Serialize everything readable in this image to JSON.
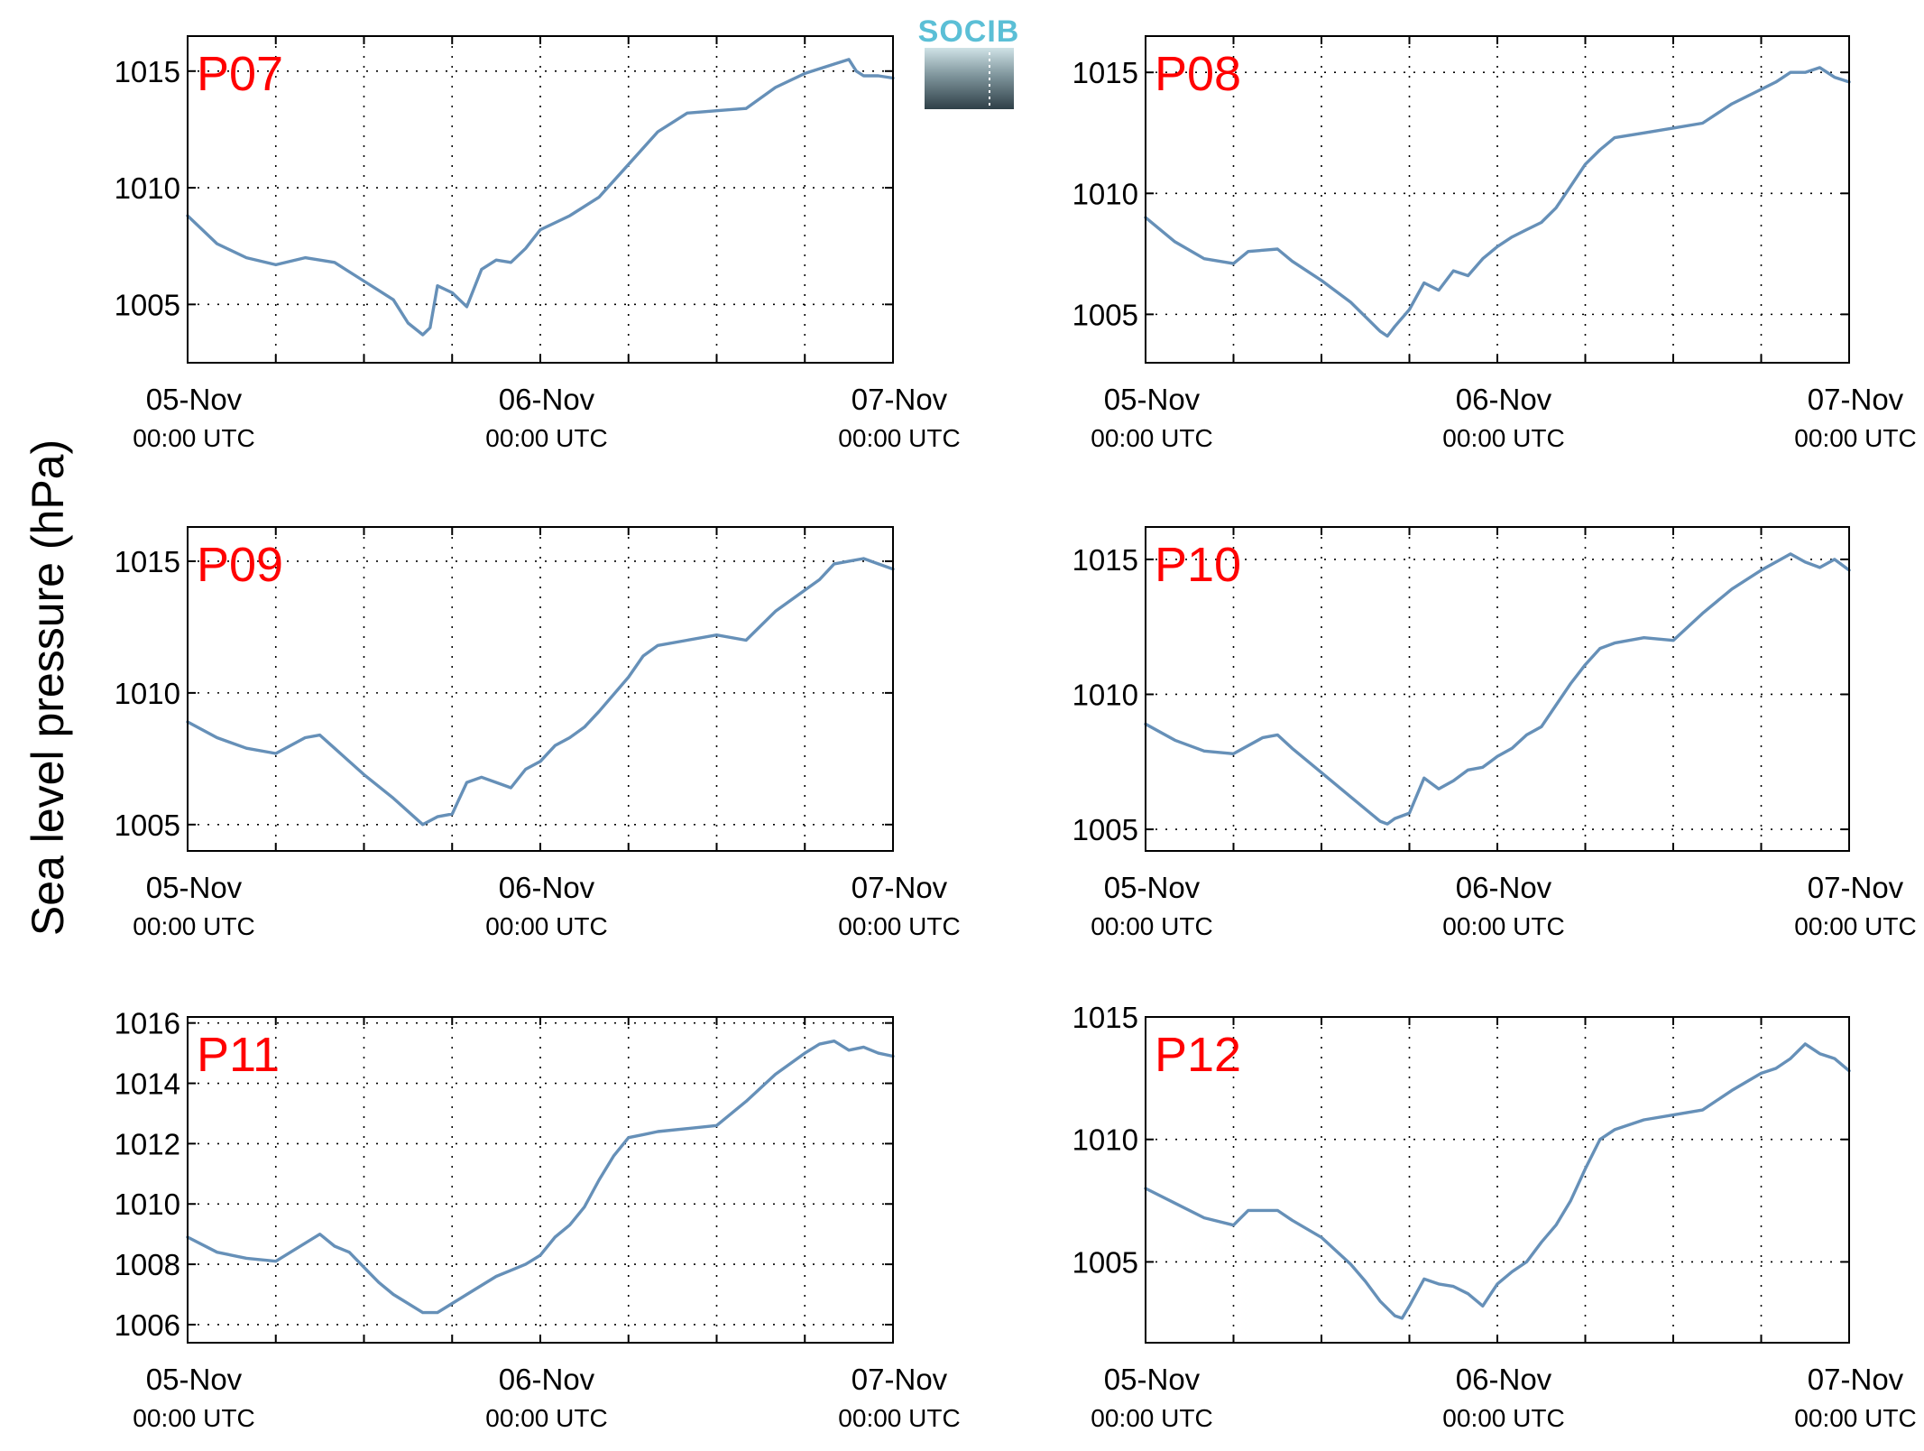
{
  "figure": {
    "ylabel": "Sea level pressure (hPa)",
    "logo_text": "SOCIB",
    "line_color": "#6690b8",
    "label_color": "#ff0000"
  },
  "chart_data": [
    {
      "type": "line",
      "title": "P07",
      "xlabels": [
        {
          "date": "05-Nov",
          "time": "00:00 UTC"
        },
        {
          "date": "06-Nov",
          "time": "00:00 UTC"
        },
        {
          "date": "07-Nov",
          "time": "00:00 UTC"
        }
      ],
      "xlim": [
        0,
        48
      ],
      "ylim": [
        1002.5,
        1016.5
      ],
      "yticks": [
        1005,
        1010,
        1015
      ],
      "grid": true,
      "x": [
        0,
        2,
        4,
        6,
        8,
        10,
        12,
        13,
        14,
        15,
        16,
        16.5,
        17,
        18,
        19,
        20,
        21,
        22,
        23,
        24,
        26,
        28,
        30,
        32,
        33,
        34,
        36,
        38,
        40,
        42,
        44,
        45,
        45.5,
        46,
        47,
        48
      ],
      "values": [
        1008.8,
        1007.6,
        1007.0,
        1006.7,
        1007.0,
        1006.8,
        1006.0,
        1005.6,
        1005.2,
        1004.2,
        1003.7,
        1004.0,
        1005.8,
        1005.5,
        1004.9,
        1006.5,
        1006.9,
        1006.8,
        1007.4,
        1008.2,
        1008.8,
        1009.6,
        1011.0,
        1012.4,
        1012.8,
        1013.2,
        1013.3,
        1013.4,
        1014.3,
        1014.9,
        1015.3,
        1015.5,
        1015.0,
        1014.8,
        1014.8,
        1014.7
      ]
    },
    {
      "type": "line",
      "title": "P08",
      "xlabels": [
        {
          "date": "05-Nov",
          "time": "00:00 UTC"
        },
        {
          "date": "06-Nov",
          "time": "00:00 UTC"
        },
        {
          "date": "07-Nov",
          "time": "00:00 UTC"
        }
      ],
      "xlim": [
        0,
        48
      ],
      "ylim": [
        1003,
        1016.5
      ],
      "yticks": [
        1005,
        1010,
        1015
      ],
      "grid": true,
      "x": [
        0,
        2,
        4,
        6,
        7,
        9,
        10,
        12,
        14,
        16,
        16.5,
        17,
        18,
        19,
        20,
        21,
        22,
        23,
        24,
        25,
        26,
        27,
        28,
        29,
        30,
        31,
        32,
        34,
        36,
        38,
        40,
        42,
        43,
        44,
        45,
        46,
        47,
        48
      ],
      "values": [
        1009.0,
        1008.0,
        1007.3,
        1007.1,
        1007.6,
        1007.7,
        1007.2,
        1006.4,
        1005.5,
        1004.3,
        1004.1,
        1004.5,
        1005.2,
        1006.3,
        1006.0,
        1006.8,
        1006.6,
        1007.3,
        1007.8,
        1008.2,
        1008.5,
        1008.8,
        1009.4,
        1010.3,
        1011.2,
        1011.8,
        1012.3,
        1012.5,
        1012.7,
        1012.9,
        1013.7,
        1014.3,
        1014.6,
        1015.0,
        1015.0,
        1015.2,
        1014.8,
        1014.6
      ]
    },
    {
      "type": "line",
      "title": "P09",
      "xlabels": [
        {
          "date": "05-Nov",
          "time": "00:00 UTC"
        },
        {
          "date": "06-Nov",
          "time": "00:00 UTC"
        },
        {
          "date": "07-Nov",
          "time": "00:00 UTC"
        }
      ],
      "xlim": [
        0,
        48
      ],
      "ylim": [
        1004,
        1016.3
      ],
      "yticks": [
        1005,
        1010,
        1015
      ],
      "grid": true,
      "x": [
        0,
        2,
        4,
        6,
        8,
        9,
        10,
        12,
        14,
        16,
        17,
        18,
        19,
        20,
        21,
        22,
        23,
        24,
        25,
        26,
        27,
        28,
        30,
        31,
        32,
        34,
        36,
        38,
        40,
        42,
        43,
        44,
        45,
        46,
        47,
        48
      ],
      "values": [
        1008.9,
        1008.3,
        1007.9,
        1007.7,
        1008.3,
        1008.4,
        1007.9,
        1006.9,
        1006.0,
        1005.0,
        1005.3,
        1005.4,
        1006.6,
        1006.8,
        1006.6,
        1006.4,
        1007.1,
        1007.4,
        1008.0,
        1008.3,
        1008.7,
        1009.3,
        1010.6,
        1011.4,
        1011.8,
        1012.0,
        1012.2,
        1012.0,
        1013.1,
        1013.9,
        1014.3,
        1014.9,
        1015.0,
        1015.1,
        1014.9,
        1014.7
      ]
    },
    {
      "type": "line",
      "title": "P10",
      "xlabels": [
        {
          "date": "05-Nov",
          "time": "00:00 UTC"
        },
        {
          "date": "06-Nov",
          "time": "00:00 UTC"
        },
        {
          "date": "07-Nov",
          "time": "00:00 UTC"
        }
      ],
      "xlim": [
        0,
        48
      ],
      "ylim": [
        1004.2,
        1016.2
      ],
      "yticks": [
        1005,
        1010,
        1015
      ],
      "grid": true,
      "x": [
        0,
        2,
        4,
        6,
        8,
        9,
        10,
        12,
        14,
        16,
        16.5,
        17,
        18,
        19,
        20,
        21,
        22,
        23,
        24,
        25,
        26,
        27,
        28,
        29,
        30,
        31,
        32,
        34,
        36,
        38,
        40,
        42,
        43,
        44,
        45,
        46,
        47,
        48
      ],
      "values": [
        1008.9,
        1008.3,
        1007.9,
        1007.8,
        1008.4,
        1008.5,
        1008.0,
        1007.1,
        1006.2,
        1005.3,
        1005.2,
        1005.4,
        1005.6,
        1006.9,
        1006.5,
        1006.8,
        1007.2,
        1007.3,
        1007.7,
        1008.0,
        1008.5,
        1008.8,
        1009.6,
        1010.4,
        1011.1,
        1011.7,
        1011.9,
        1012.1,
        1012.0,
        1013.0,
        1013.9,
        1014.6,
        1014.9,
        1015.2,
        1014.9,
        1014.7,
        1015.0,
        1014.6
      ]
    },
    {
      "type": "line",
      "title": "P11",
      "xlabels": [
        {
          "date": "05-Nov",
          "time": "00:00 UTC"
        },
        {
          "date": "06-Nov",
          "time": "00:00 UTC"
        },
        {
          "date": "07-Nov",
          "time": "00:00 UTC"
        }
      ],
      "xlim": [
        0,
        48
      ],
      "ylim": [
        1005.4,
        1016.2
      ],
      "yticks": [
        1006,
        1008,
        1010,
        1012,
        1014,
        1016
      ],
      "grid": true,
      "x": [
        0,
        2,
        4,
        6,
        8,
        9,
        10,
        11,
        12,
        13,
        14,
        16,
        17,
        18,
        19,
        20,
        21,
        22,
        23,
        24,
        25,
        26,
        27,
        28,
        29,
        30,
        31,
        32,
        34,
        36,
        38,
        40,
        42,
        43,
        44,
        45,
        46,
        47,
        48
      ],
      "values": [
        1008.9,
        1008.4,
        1008.2,
        1008.1,
        1008.7,
        1009.0,
        1008.6,
        1008.4,
        1007.9,
        1007.4,
        1007.0,
        1006.4,
        1006.4,
        1006.7,
        1007.0,
        1007.3,
        1007.6,
        1007.8,
        1008.0,
        1008.3,
        1008.9,
        1009.3,
        1009.9,
        1010.8,
        1011.6,
        1012.2,
        1012.3,
        1012.4,
        1012.5,
        1012.6,
        1013.4,
        1014.3,
        1015.0,
        1015.3,
        1015.4,
        1015.1,
        1015.2,
        1015.0,
        1014.9
      ]
    },
    {
      "type": "line",
      "title": "P12",
      "xlabels": [
        {
          "date": "05-Nov",
          "time": "00:00 UTC"
        },
        {
          "date": "06-Nov",
          "time": "00:00 UTC"
        },
        {
          "date": "07-Nov",
          "time": "00:00 UTC"
        }
      ],
      "xlim": [
        0,
        48
      ],
      "ylim": [
        1001.7,
        1015
      ],
      "yticks": [
        1005,
        1010,
        1015
      ],
      "grid": true,
      "x": [
        0,
        2,
        4,
        6,
        7,
        9,
        10,
        12,
        14,
        15,
        16,
        17,
        17.5,
        18,
        19,
        20,
        21,
        22,
        23,
        24,
        25,
        26,
        27,
        28,
        29,
        30,
        31,
        32,
        34,
        36,
        38,
        40,
        42,
        43,
        44,
        45,
        46,
        47,
        48
      ],
      "values": [
        1008.0,
        1007.4,
        1006.8,
        1006.5,
        1007.1,
        1007.1,
        1006.7,
        1006.0,
        1004.9,
        1004.2,
        1003.4,
        1002.8,
        1002.7,
        1003.2,
        1004.3,
        1004.1,
        1004.0,
        1003.7,
        1003.2,
        1004.1,
        1004.6,
        1005.0,
        1005.8,
        1006.5,
        1007.5,
        1008.8,
        1010.0,
        1010.4,
        1010.8,
        1011.0,
        1011.2,
        1012.0,
        1012.7,
        1012.9,
        1013.3,
        1013.9,
        1013.5,
        1013.3,
        1012.8
      ]
    }
  ]
}
